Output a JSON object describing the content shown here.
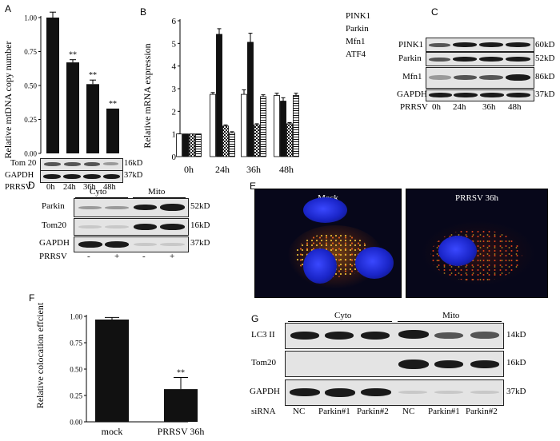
{
  "panel_labels": {
    "a": "A",
    "b": "B",
    "c": "C",
    "d": "D",
    "e": "E",
    "f": "F",
    "g": "G"
  },
  "panel_a": {
    "ylabel": "Relative mtDNA copy number",
    "blot_rows": [
      {
        "label": "Tom 20",
        "size": "16kD"
      },
      {
        "label": "GAPDH",
        "size": "37kD"
      }
    ],
    "treatment": "PRRSV",
    "lanes": [
      "0h",
      "24h",
      "36h",
      "48h"
    ]
  },
  "panel_b": {
    "ylabel": "Relative mRNA expression",
    "legend": [
      "PINK1",
      "Parkin",
      "Mfn1",
      "ATF4"
    ]
  },
  "panel_c": {
    "blot_rows": [
      {
        "label": "PINK1",
        "size": "60kD"
      },
      {
        "label": "Parkin",
        "size": "52kD"
      },
      {
        "label": "Mfn1",
        "size": "86kD"
      },
      {
        "label": "GAPDH",
        "size": "37kD"
      }
    ],
    "treatment": "PRRSV",
    "lanes": [
      "0h",
      "24h",
      "36h",
      "48h"
    ]
  },
  "panel_d": {
    "groups": [
      "Cyto",
      "Mito"
    ],
    "blot_rows": [
      {
        "label": "Parkin",
        "size": "52kD"
      },
      {
        "label": "Tom20",
        "size": "16kD"
      },
      {
        "label": "GAPDH",
        "size": "37kD"
      }
    ],
    "treatment": "PRRSV",
    "lanes": [
      "-",
      "+",
      "-",
      "+"
    ]
  },
  "panel_e": {
    "images": [
      "Mock",
      "PRRSV 36h"
    ]
  },
  "panel_f": {
    "ylabel": "Relative colocation effcient"
  },
  "panel_g": {
    "groups": [
      "Cyto",
      "Mito"
    ],
    "blot_rows": [
      {
        "label": "LC3 II",
        "size": "14kD"
      },
      {
        "label": "Tom20",
        "size": "16kD"
      },
      {
        "label": "GAPDH",
        "size": "37kD"
      }
    ],
    "treatment": "siRNA",
    "lanes": [
      "NC",
      "Parkin#1",
      "Parkin#2",
      "NC",
      "Parkin#1",
      "Parkin#2"
    ]
  },
  "colors": {
    "bar": "#111111",
    "background": "#ffffff",
    "nucleus": "#1a25c8"
  },
  "chart_data": [
    {
      "type": "bar",
      "panel": "A",
      "categories": [
        "0h",
        "24h",
        "36h",
        "48h"
      ],
      "values": [
        1.0,
        0.67,
        0.51,
        0.33
      ],
      "errors": [
        0.04,
        0.02,
        0.03,
        0.0
      ],
      "annotations": [
        "",
        "**",
        "**",
        "**"
      ],
      "ylabel": "Relative mtDNA copy number",
      "ylim": [
        0,
        1.0
      ],
      "yticks": [
        "0.00",
        "0.25",
        "0.50",
        "0.75",
        "1.00"
      ]
    },
    {
      "type": "bar",
      "panel": "B",
      "categories": [
        "0h",
        "24h",
        "36h",
        "48h"
      ],
      "series": [
        {
          "name": "PINK1",
          "values": [
            1.0,
            2.75,
            2.75,
            2.7
          ],
          "errors": [
            0,
            0.08,
            0.2,
            0.1
          ]
        },
        {
          "name": "Parkin",
          "values": [
            1.0,
            5.4,
            5.05,
            2.45
          ],
          "errors": [
            0,
            0.25,
            0.4,
            0.15
          ]
        },
        {
          "name": "Mfn1",
          "values": [
            1.0,
            1.35,
            1.4,
            1.45
          ],
          "errors": [
            0,
            0.05,
            0.05,
            0.05
          ]
        },
        {
          "name": "ATF4",
          "values": [
            1.0,
            1.05,
            2.65,
            2.7
          ],
          "errors": [
            0,
            0.05,
            0.08,
            0.1
          ]
        }
      ],
      "ylabel": "Relative mRNA expression",
      "ylim": [
        0,
        6
      ],
      "yticks": [
        "0",
        "1",
        "2",
        "3",
        "4",
        "5",
        "6"
      ]
    },
    {
      "type": "bar",
      "panel": "F",
      "categories": [
        "mock",
        "PRRSV 36h"
      ],
      "values": [
        0.97,
        0.31
      ],
      "errors": [
        0.02,
        0.11
      ],
      "annotations": [
        "",
        "**"
      ],
      "ylabel": "Relative colocation effcient",
      "ylim": [
        0,
        1.0
      ],
      "yticks": [
        "0.00",
        "0.25",
        "0.50",
        "0.75",
        "1.00"
      ]
    }
  ]
}
